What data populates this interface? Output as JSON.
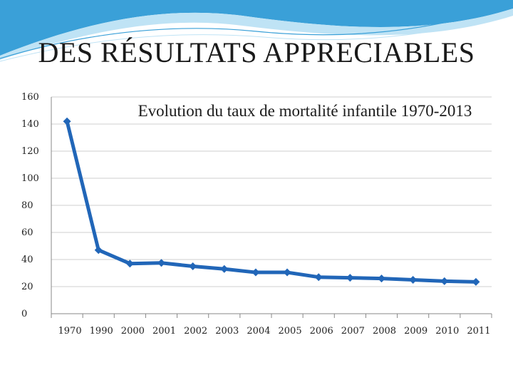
{
  "slide": {
    "title": "DES RÉSULTATS APPRECIABLES"
  },
  "colors": {
    "series": "#2166b8",
    "wave_dark": "#3aa0d8",
    "wave_light": "#bfe3f5",
    "grid": "#cfcfcf"
  },
  "chart_data": {
    "type": "line",
    "title": "Evolution du taux de mortalité infantile 1970-2013",
    "categories": [
      "1970",
      "1990",
      "2000",
      "2001",
      "2002",
      "2003",
      "2004",
      "2005",
      "2006",
      "2007",
      "2008",
      "2009",
      "2010",
      "2011"
    ],
    "series": [
      {
        "name": "Taux de mortalité infantile",
        "values": [
          142,
          47,
          37,
          37.5,
          35,
          33,
          30.5,
          30.5,
          27,
          26.5,
          26,
          25,
          24,
          23.5
        ]
      }
    ],
    "ylim": [
      0,
      160
    ],
    "yticks": [
      0,
      20,
      40,
      60,
      80,
      100,
      120,
      140,
      160
    ],
    "grid": true,
    "xlabel": "",
    "ylabel": ""
  }
}
